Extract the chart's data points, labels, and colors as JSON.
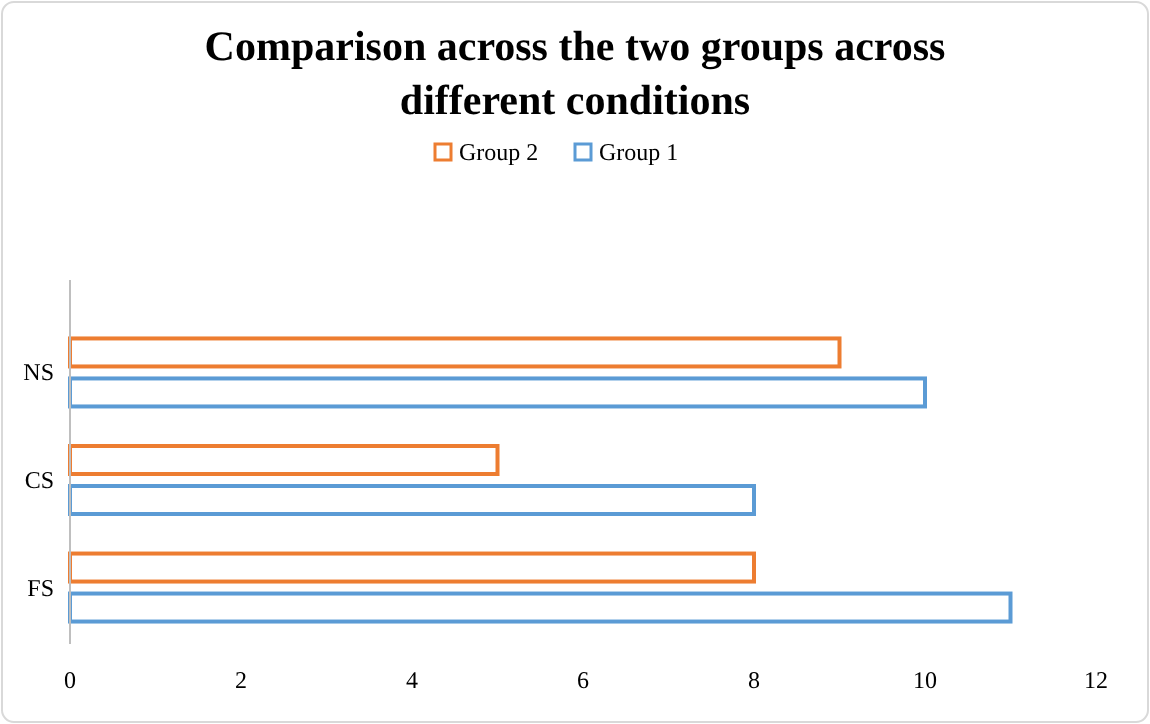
{
  "chart_data": {
    "type": "bar",
    "orientation": "horizontal",
    "title": "Comparison across the two groups across different conditions",
    "categories": [
      "NS",
      "CS",
      "FS"
    ],
    "series": [
      {
        "name": "Group 2",
        "color": "#ed7d31",
        "values": [
          9,
          5,
          8
        ]
      },
      {
        "name": "Group 1",
        "color": "#5b9bd5",
        "values": [
          10,
          8,
          11
        ]
      }
    ],
    "xlim": [
      0,
      12
    ],
    "xticks": [
      0,
      2,
      4,
      6,
      8,
      10,
      12
    ],
    "legend": "top",
    "grid": false
  }
}
